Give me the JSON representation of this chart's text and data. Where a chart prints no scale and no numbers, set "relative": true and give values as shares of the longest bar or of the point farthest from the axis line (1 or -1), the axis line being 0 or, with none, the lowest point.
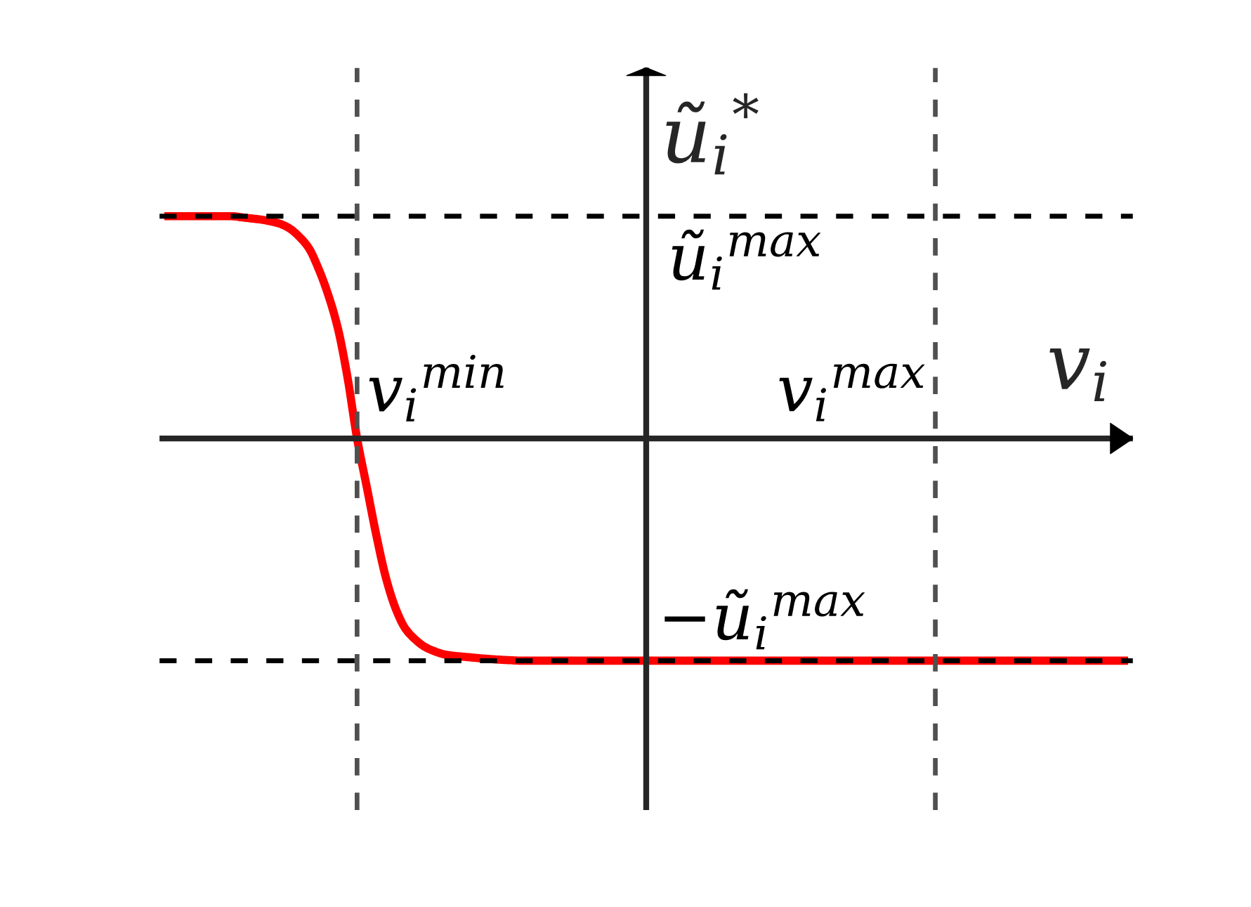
{
  "chart_data": {
    "type": "line",
    "relative": true,
    "xlabel": "v$_{i}$",
    "ylabel": "ũ$_{i}$$^{*}$",
    "categories": [
      null,
      null,
      null,
      null,
      null,
      null,
      null,
      null,
      null,
      null,
      null,
      null,
      null,
      null,
      null,
      null,
      null,
      null,
      null,
      null,
      null,
      null,
      null,
      null,
      null,
      null,
      null,
      null,
      null,
      null,
      null,
      null,
      null,
      null,
      null,
      null,
      null,
      null,
      null,
      null,
      null,
      null,
      null,
      null,
      null,
      null,
      null,
      null,
      null,
      null,
      null,
      null,
      null,
      null,
      null,
      null,
      null,
      null,
      null,
      null,
      null,
      null,
      null,
      null,
      null,
      null,
      null,
      null,
      null,
      null,
      null,
      null,
      null,
      null,
      null,
      null,
      null,
      null,
      null,
      null,
      null,
      null,
      null,
      null,
      null,
      null,
      null,
      null,
      null,
      null,
      null,
      null,
      null,
      null,
      null,
      null,
      null,
      null,
      null,
      null,
      null
    ],
    "series": [
      {
        "color": "#ff0000",
        "values": [
          1,
          1,
          1,
          1,
          1,
          1,
          1,
          1,
          0.995,
          0.99,
          0.985,
          0.977,
          0.966,
          0.945,
          0.908,
          0.856,
          0.764,
          0.647,
          0.497,
          0.277,
          0,
          -0.217,
          -0.436,
          -0.628,
          -0.765,
          -0.855,
          -0.903,
          -0.937,
          -0.957,
          -0.971,
          -0.978,
          -0.982,
          -0.986,
          -0.99,
          -0.993,
          -0.996,
          -0.998,
          -1,
          -1,
          -1,
          -1,
          -1,
          -1,
          -1,
          -1,
          -1,
          -1,
          -1,
          -1,
          -1,
          -1,
          -1,
          -1,
          -1,
          -1,
          -1,
          -1,
          -1,
          -1,
          -1,
          -1,
          -1,
          -1,
          -1,
          -1,
          -1,
          -1,
          -1,
          -1,
          -1,
          -1,
          -1,
          -1,
          -1,
          -1,
          -1,
          -1,
          -1,
          -1,
          -1,
          -1,
          -1,
          -1,
          -1,
          -1,
          -1,
          -1,
          -1,
          -1,
          -1,
          -1,
          -1,
          -1,
          -1,
          -1,
          -1,
          -1,
          -1,
          -1,
          -1,
          -1
        ]
      }
    ],
    "ref_lines": [
      {
        "axis": "y",
        "value": 1,
        "label": "ũ$_{i}$$^{max}$",
        "color": "#000000",
        "line_style": "dashed"
      },
      {
        "axis": "y",
        "value": -1,
        "label": "−ũ$_{i}$$^{max}$",
        "color": "#000000",
        "line_style": "dashed"
      }
    ],
    "annotations": [
      "v$_{i}$$^{min}$",
      "v$_{i}$$^{max}$"
    ]
  }
}
